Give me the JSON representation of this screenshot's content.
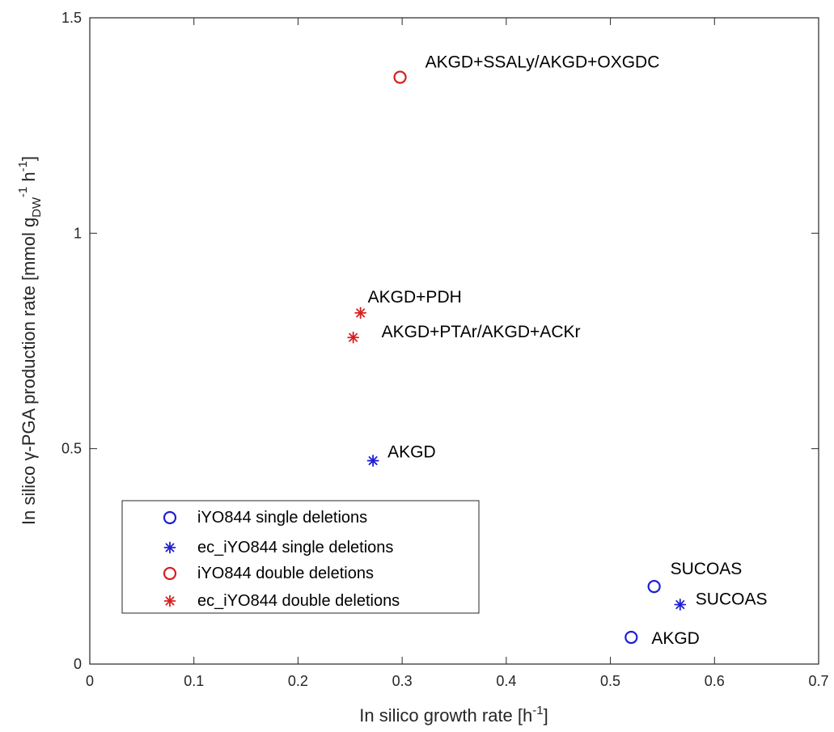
{
  "chart_data": {
    "type": "scatter",
    "title": "",
    "xlabel": {
      "main": "In silico growth rate [h",
      "sup": "-1",
      "tail": "]"
    },
    "ylabel": {
      "main": "In silico γ-PGA production rate [mmol g",
      "sub": "DW",
      "sup1": "-1",
      "mid": " h",
      "sup2": "-1",
      "tail": "]"
    },
    "xlim": [
      0,
      0.7
    ],
    "ylim": [
      0,
      1.5
    ],
    "xticks": [
      0,
      0.1,
      0.2,
      0.3,
      0.4,
      0.5,
      0.6,
      0.7
    ],
    "xtick_labels": [
      "0",
      "0.1",
      "0.2",
      "0.3",
      "0.4",
      "0.5",
      "0.6",
      "0.7"
    ],
    "yticks": [
      0,
      0.5,
      1,
      1.5
    ],
    "ytick_labels": [
      "0",
      "0.5",
      "1",
      "1.5"
    ],
    "grid": false,
    "legend_position": "bottom-left",
    "series": [
      {
        "name": "iYO844 single deletions",
        "marker": "circle",
        "color": "#1f1fd6",
        "points": [
          {
            "x": 0.542,
            "y": 0.18,
            "label": "SUCOAS"
          },
          {
            "x": 0.52,
            "y": 0.062,
            "label": "AKGD"
          }
        ]
      },
      {
        "name": "ec_iYO844 single deletions",
        "marker": "asterisk",
        "color": "#1f1fd6",
        "points": [
          {
            "x": 0.567,
            "y": 0.138,
            "label": "SUCOAS"
          },
          {
            "x": 0.272,
            "y": 0.472,
            "label": "AKGD"
          }
        ]
      },
      {
        "name": "iYO844 double deletions",
        "marker": "circle",
        "color": "#d62020",
        "points": [
          {
            "x": 0.298,
            "y": 1.362,
            "label": "AKGD+SSALy/AKGD+OXGDC"
          }
        ]
      },
      {
        "name": "ec_iYO844 double deletions",
        "marker": "asterisk",
        "color": "#d62020",
        "points": [
          {
            "x": 0.26,
            "y": 0.815,
            "label": "AKGD+PDH"
          },
          {
            "x": 0.253,
            "y": 0.758,
            "label": "AKGD+PTAr/AKGD+ACKr"
          }
        ]
      }
    ]
  }
}
